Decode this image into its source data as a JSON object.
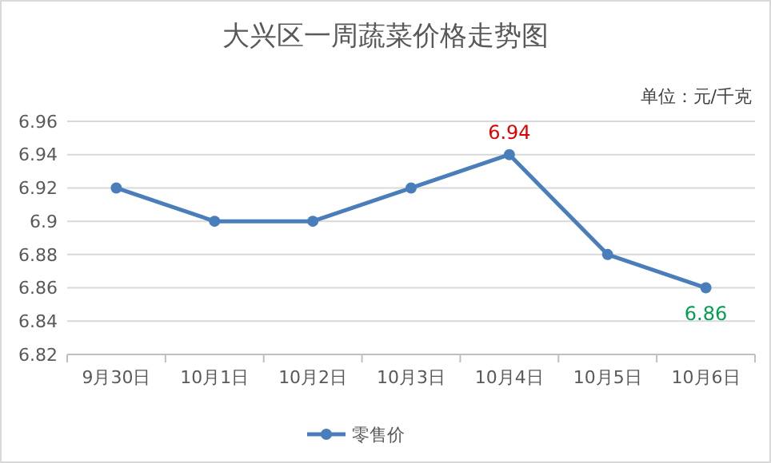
{
  "chart_data": {
    "type": "line",
    "title": "大兴区一周蔬菜价格走势图",
    "annotations": [
      "单位：元/千克"
    ],
    "categories": [
      "9月30日",
      "10月1日",
      "10月2日",
      "10月3日",
      "10月4日",
      "10月5日",
      "10月6日"
    ],
    "series": [
      {
        "name": "零售价",
        "color": "#4a7ebb",
        "values": [
          6.92,
          6.9,
          6.9,
          6.92,
          6.94,
          6.88,
          6.86
        ],
        "value_labels": [
          null,
          null,
          null,
          null,
          "6.94",
          null,
          "6.86"
        ]
      }
    ],
    "ylim": [
      6.82,
      6.96
    ],
    "yticks": [
      6.82,
      6.84,
      6.86,
      6.88,
      {
        "value": 6.9,
        "label": "6.9"
      },
      6.92,
      6.94,
      6.96
    ],
    "grid": "y",
    "legend": "bottom",
    "marker": "circle",
    "line_style": "solid"
  }
}
